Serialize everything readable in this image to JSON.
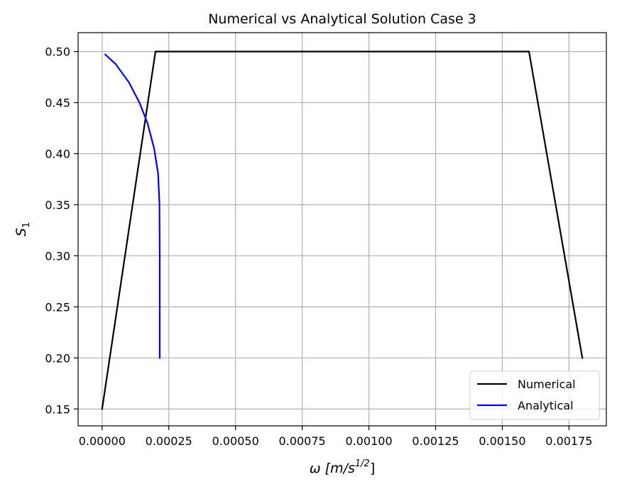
{
  "chart_data": {
    "type": "line",
    "title": "Numerical vs Analytical Solution Case 3",
    "xlabel": {
      "main": "ω  [m/s",
      "sup": "1/2",
      "end": "]"
    },
    "ylabel": {
      "main": "S",
      "sub": "1"
    },
    "xlim": [
      -9e-05,
      0.00189
    ],
    "ylim": [
      0.1335,
      0.5185
    ],
    "x_ticks": [
      0.0,
      0.00025,
      0.0005,
      0.00075,
      0.001,
      0.00125,
      0.0015,
      0.00175
    ],
    "x_tick_labels": [
      "0.00000",
      "0.00025",
      "0.00050",
      "0.00075",
      "0.00100",
      "0.00125",
      "0.00150",
      "0.00175"
    ],
    "y_ticks": [
      0.15,
      0.2,
      0.25,
      0.3,
      0.35,
      0.4,
      0.45,
      0.5
    ],
    "y_tick_labels": [
      "0.15",
      "0.20",
      "0.25",
      "0.30",
      "0.35",
      "0.40",
      "0.45",
      "0.50"
    ],
    "grid": true,
    "legend_position": "lower-right",
    "series": [
      {
        "name": "Numerical",
        "color": "#000000",
        "x": [
          0.0,
          0.0002,
          0.0016,
          0.0018
        ],
        "y": [
          0.15,
          0.5,
          0.5,
          0.2
        ]
      },
      {
        "name": "Analytical",
        "color": "#0000ff",
        "x": [
          1.2e-05,
          5e-05,
          0.0001,
          0.00014,
          0.00017,
          0.000195,
          0.00021,
          0.000215,
          0.000216,
          0.000216
        ],
        "y": [
          0.497,
          0.488,
          0.47,
          0.45,
          0.43,
          0.405,
          0.38,
          0.35,
          0.3,
          0.2
        ]
      }
    ]
  }
}
